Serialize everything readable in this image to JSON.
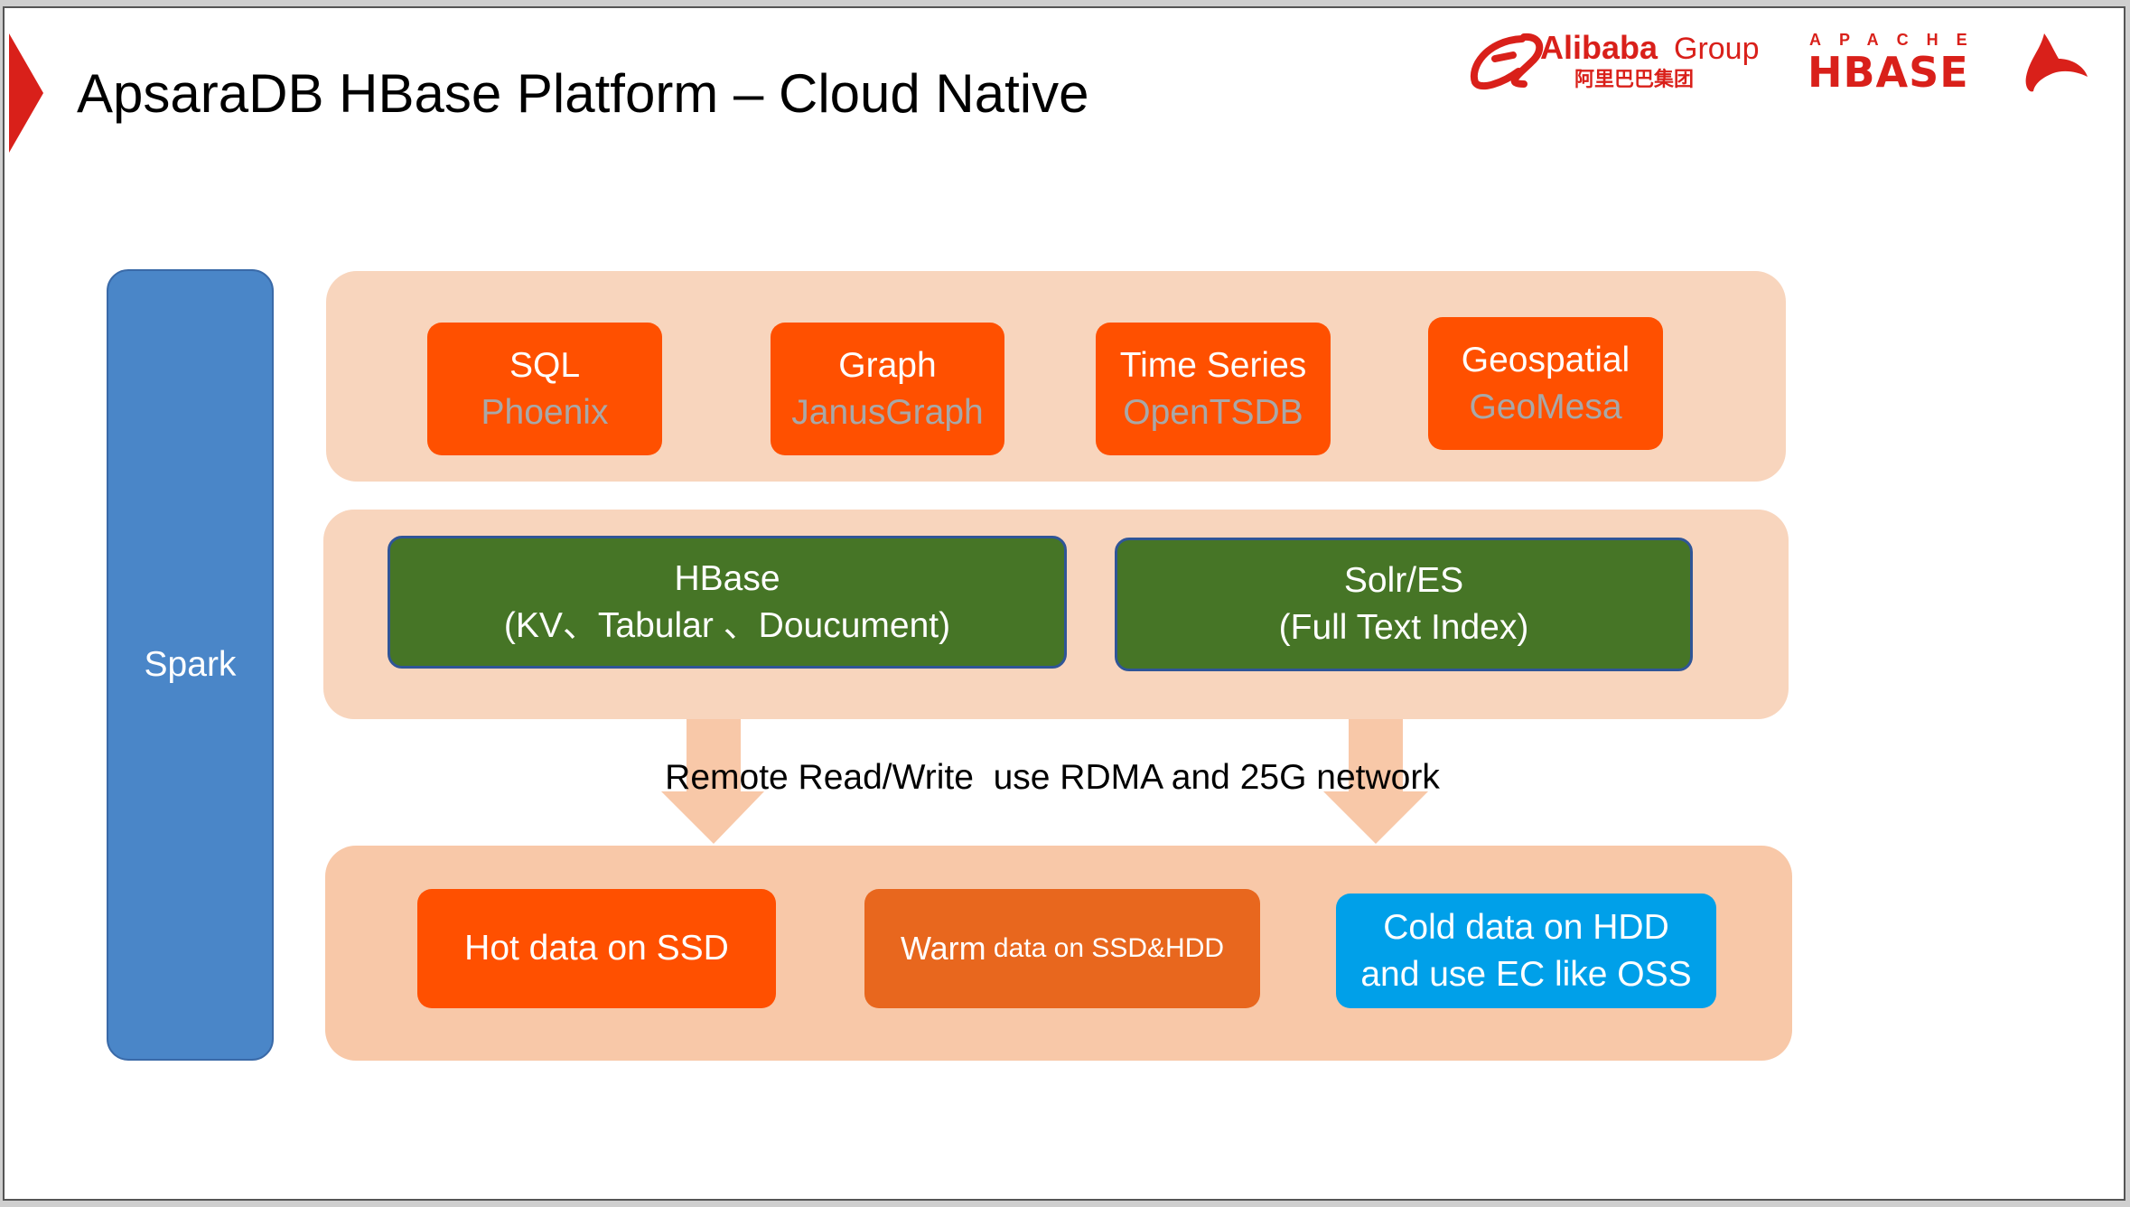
{
  "title": "ApsaraDB HBase Platform – Cloud Native",
  "logos": {
    "alibaba": {
      "name": "Alibaba",
      "group": "Group",
      "chinese": "阿里巴巴集团"
    },
    "hbase": {
      "top": "APACHE",
      "main": "HBASE"
    }
  },
  "spark": "Spark",
  "engines": [
    {
      "title": "SQL",
      "sub": "Phoenix"
    },
    {
      "title": "Graph",
      "sub": "JanusGraph"
    },
    {
      "title": "Time Series",
      "sub": "OpenTSDB"
    },
    {
      "title": "Geospatial",
      "sub": "GeoMesa"
    }
  ],
  "stores": [
    {
      "title": "HBase",
      "sub": "(KV、Tabular 、Doucument)"
    },
    {
      "title": "Solr/ES",
      "sub": "(Full Text Index)"
    }
  ],
  "network_text": "Remote Read/Write  use RDMA and 25G network",
  "tiers": {
    "hot": "Hot data on SSD",
    "warm_big": "Warm",
    "warm_small": " data on SSD&HDD",
    "cold_line1": "Cold data on HDD",
    "cold_line2": "and use EC like OSS"
  },
  "colors": {
    "accent": "#ff5000",
    "green": "#467526",
    "spark": "#4a86c8",
    "cold": "#00a0e9",
    "warm": "#e8671e",
    "brand_red": "#d9201a"
  }
}
